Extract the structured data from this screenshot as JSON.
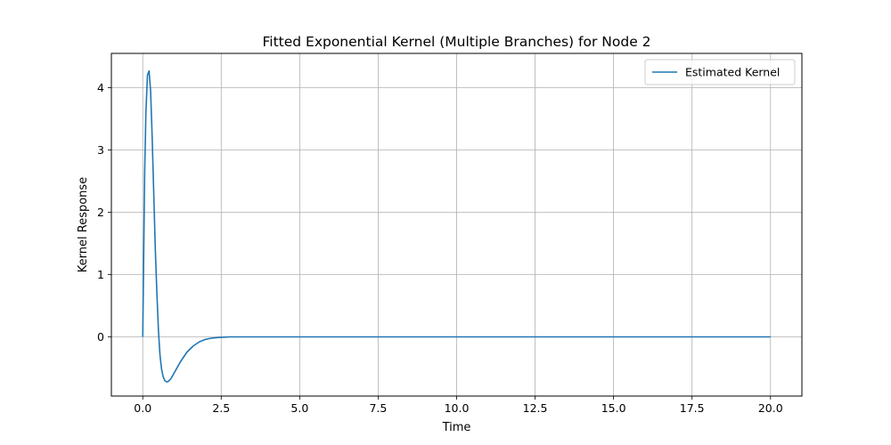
{
  "chart_data": {
    "type": "line",
    "title": "Fitted Exponential Kernel (Multiple Branches) for Node 2",
    "xlabel": "Time",
    "ylabel": "Kernel Response",
    "xlim": [
      -1.0,
      21.0
    ],
    "ylim": [
      -0.95,
      4.55
    ],
    "xticks": [
      0.0,
      2.5,
      5.0,
      7.5,
      10.0,
      12.5,
      15.0,
      17.5,
      20.0
    ],
    "xtick_labels": [
      "0.0",
      "2.5",
      "5.0",
      "7.5",
      "10.0",
      "12.5",
      "15.0",
      "17.5",
      "20.0"
    ],
    "yticks": [
      0,
      1,
      2,
      3,
      4
    ],
    "ytick_labels": [
      "0",
      "1",
      "2",
      "3",
      "4"
    ],
    "grid": true,
    "legend_position": "top-right",
    "series": [
      {
        "name": "Estimated Kernel",
        "color": "#1f77b4",
        "x": [
          0,
          0.03,
          0.06,
          0.1,
          0.15,
          0.2,
          0.25,
          0.3,
          0.35,
          0.4,
          0.45,
          0.5,
          0.55,
          0.6,
          0.65,
          0.7,
          0.75,
          0.8,
          0.9,
          1.0,
          1.1,
          1.2,
          1.4,
          1.6,
          1.8,
          2.0,
          2.2,
          2.4,
          2.6,
          2.8,
          3.0,
          3.5,
          4.0,
          5.0,
          7.5,
          10.0,
          12.5,
          15.0,
          17.5,
          20.0
        ],
        "y": [
          0,
          1.3,
          2.6,
          3.6,
          4.2,
          4.27,
          3.95,
          3.2,
          2.3,
          1.4,
          0.7,
          0.1,
          -0.3,
          -0.52,
          -0.64,
          -0.7,
          -0.72,
          -0.72,
          -0.67,
          -0.58,
          -0.49,
          -0.4,
          -0.25,
          -0.15,
          -0.08,
          -0.04,
          -0.02,
          -0.01,
          -0.005,
          0,
          0,
          0,
          0,
          0,
          0,
          0,
          0,
          0,
          0,
          0
        ]
      }
    ]
  }
}
